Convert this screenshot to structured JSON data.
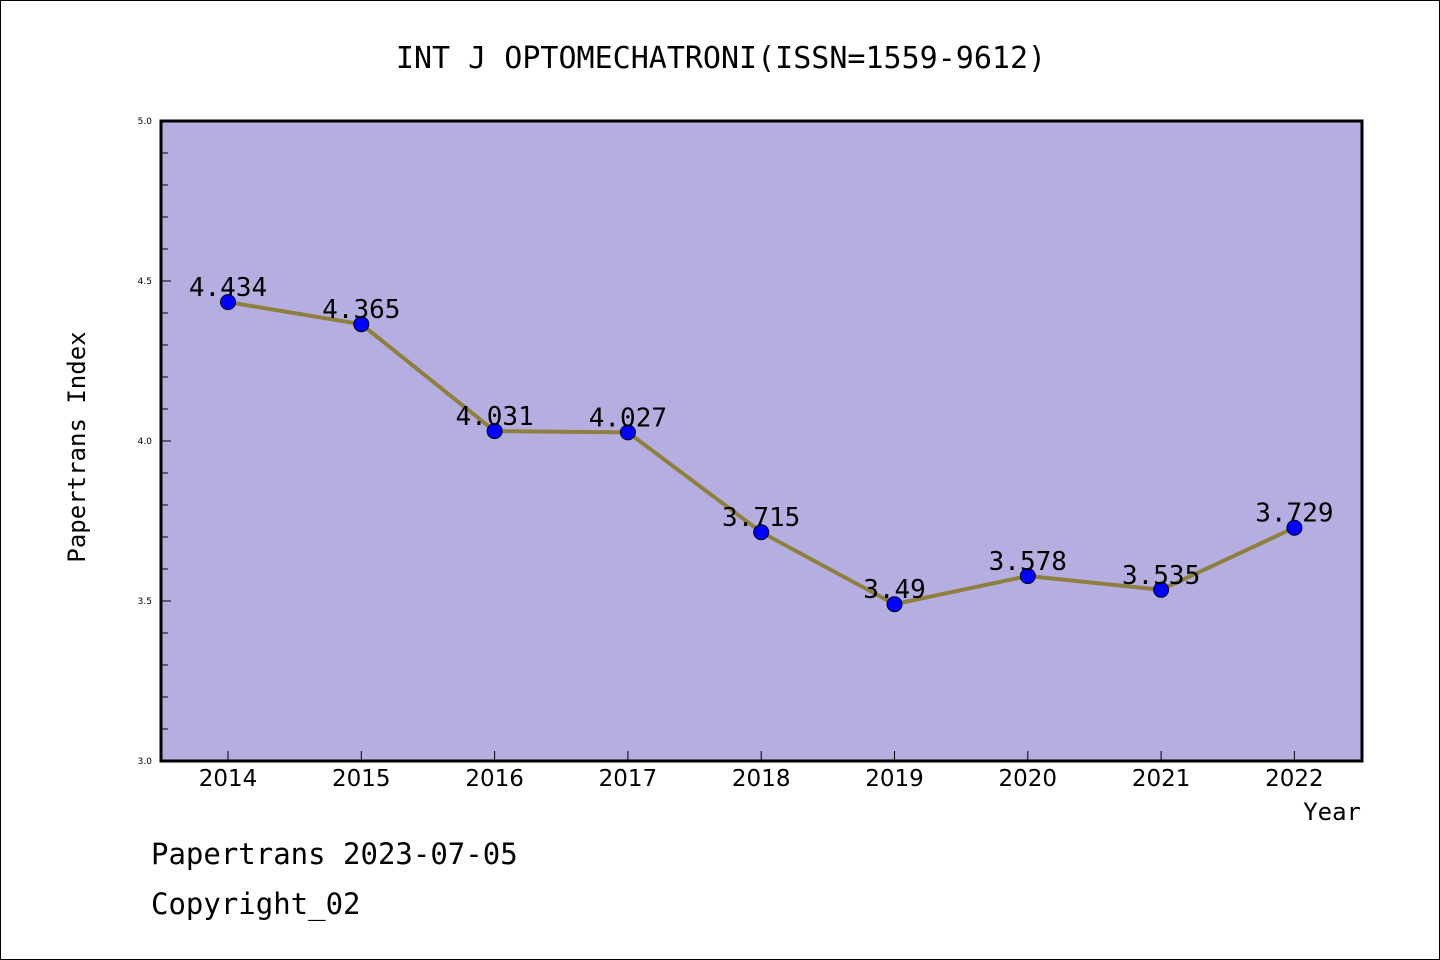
{
  "chart_data": {
    "type": "line",
    "title": "INT J OPTOMECHATRONI(ISSN=1559-9612)",
    "xlabel": "Year",
    "ylabel": "Papertrans Index",
    "categories": [
      "2014",
      "2015",
      "2016",
      "2017",
      "2018",
      "2019",
      "2020",
      "2021",
      "2022"
    ],
    "values": [
      4.434,
      4.365,
      4.031,
      4.027,
      3.715,
      3.49,
      3.578,
      3.535,
      3.729
    ],
    "labels": [
      "4.434",
      "4.365",
      "4.031",
      "4.027",
      "3.715",
      "3.49",
      "3.578",
      "3.535",
      "3.729"
    ],
    "ylim": [
      3.0,
      5.0
    ],
    "yticks": [
      "3.0",
      "3.5",
      "4.0",
      "4.5",
      "5.0"
    ],
    "grid": false,
    "plot_background": "#b5afe1",
    "line_color": "#8f7f3f",
    "marker_color": "#0000ff"
  },
  "footer": {
    "date_line": "Papertrans 2023-07-05",
    "copyright_line": "Copyright_02"
  }
}
